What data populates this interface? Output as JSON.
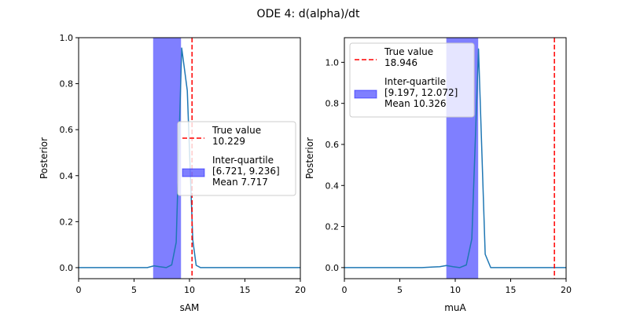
{
  "figure": {
    "title": "ODE 4: d(alpha)/dt"
  },
  "chart_data": [
    {
      "type": "line",
      "title": "",
      "xlabel": "sAM",
      "ylabel": "Posterior",
      "xlim": [
        0,
        20
      ],
      "ylim": [
        -0.048,
        1.0
      ],
      "xticks": [
        0,
        5,
        10,
        15,
        20
      ],
      "yticks": [
        0.0,
        0.2,
        0.4,
        0.6,
        0.8,
        1.0
      ],
      "ytick_labels": [
        "0.0",
        "0.2",
        "0.4",
        "0.6",
        "0.8",
        "1.0"
      ],
      "grid": false,
      "series": [
        {
          "name": "",
          "color": "#1f77b4",
          "x": [
            0,
            1,
            2,
            3,
            4,
            5,
            5.6,
            6.2,
            6.8,
            7.3,
            7.9,
            8.4,
            8.8,
            9.3,
            9.8,
            10.3,
            10.6,
            11.0,
            12,
            13,
            14,
            15,
            16,
            17,
            18,
            19,
            20
          ],
          "y": [
            0,
            0,
            0,
            0,
            0,
            0,
            0,
            0,
            0.008,
            0.004,
            0.0,
            0.012,
            0.11,
            0.955,
            0.77,
            0.12,
            0.01,
            0,
            0,
            0,
            0,
            0,
            0,
            0,
            0,
            0,
            0
          ]
        }
      ],
      "true_value": {
        "x": 10.229,
        "color": "#ff0000"
      },
      "iqr_band": {
        "from": 6.721,
        "to": 9.236,
        "color": "#0000ff",
        "alpha": 0.5
      },
      "legend": {
        "placement": "center-right",
        "entries": [
          {
            "kind": "dashed-line",
            "text": [
              "True value",
              "10.229"
            ]
          },
          {
            "kind": "patch",
            "text": [
              "Inter-quartile",
              "[6.721, 9.236]",
              "Mean 7.717"
            ]
          }
        ]
      }
    },
    {
      "type": "line",
      "title": "",
      "xlabel": "muA",
      "ylabel": "Posterior",
      "xlim": [
        0,
        20
      ],
      "ylim": [
        -0.054,
        1.12
      ],
      "xticks": [
        0,
        5,
        10,
        15,
        20
      ],
      "yticks": [
        0.0,
        0.2,
        0.4,
        0.6,
        0.8,
        1.0
      ],
      "ytick_labels": [
        "0.0",
        "0.2",
        "0.4",
        "0.6",
        "0.8",
        "1.0"
      ],
      "grid": false,
      "series": [
        {
          "name": "",
          "color": "#1f77b4",
          "x": [
            0,
            1,
            2,
            3,
            4,
            5,
            6,
            7,
            8,
            8.6,
            9.2,
            9.8,
            10.4,
            11.0,
            11.5,
            12.1,
            12.7,
            13.2,
            13.7,
            14,
            15,
            16,
            17,
            18,
            19,
            20
          ],
          "y": [
            0,
            0,
            0,
            0,
            0,
            0,
            0,
            0,
            0.003,
            0.004,
            0.01,
            0.004,
            0.0,
            0.013,
            0.14,
            1.065,
            0.065,
            0.0,
            0,
            0,
            0,
            0,
            0,
            0,
            0,
            0
          ]
        }
      ],
      "true_value": {
        "x": 18.946,
        "color": "#ff0000"
      },
      "iqr_band": {
        "from": 9.197,
        "to": 12.072,
        "color": "#0000ff",
        "alpha": 0.5
      },
      "legend": {
        "placement": "upper-left",
        "entries": [
          {
            "kind": "dashed-line",
            "text": [
              "True value",
              "18.946"
            ]
          },
          {
            "kind": "patch",
            "text": [
              "Inter-quartile",
              "[9.197, 12.072]",
              "Mean 10.326"
            ]
          }
        ]
      }
    }
  ]
}
